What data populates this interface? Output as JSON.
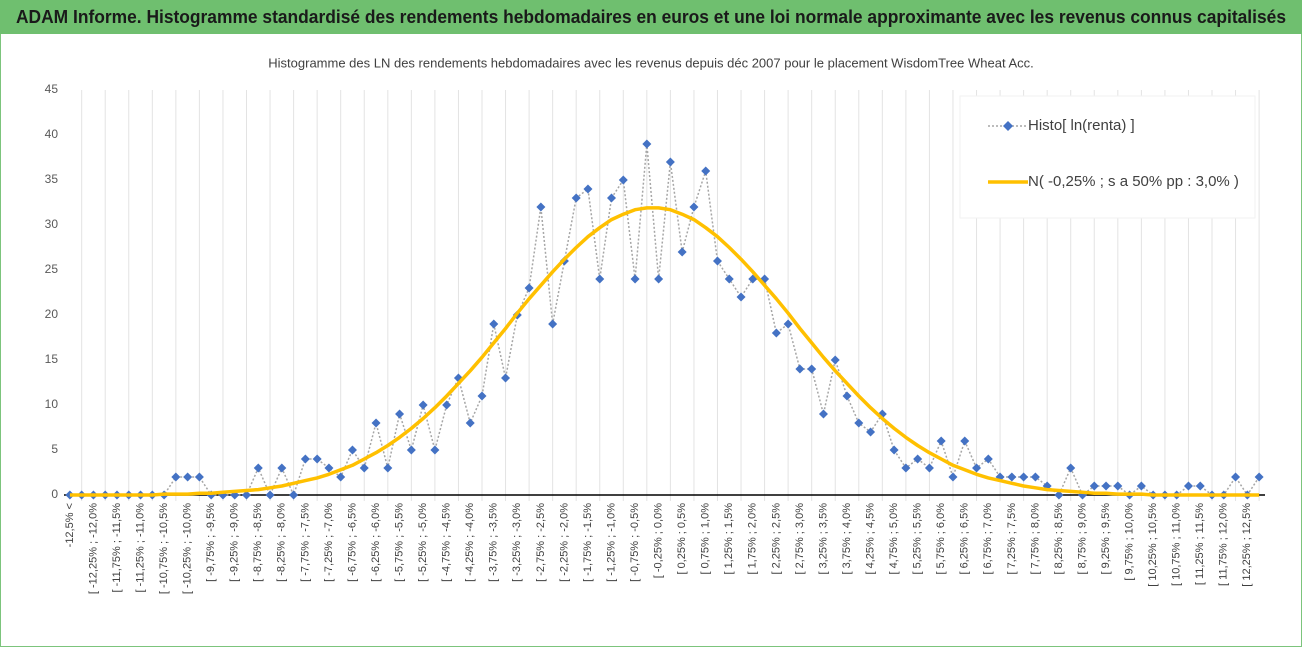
{
  "chart_data": {
    "type": "line",
    "title": "ADAM Informe. Histogramme standardisé des rendements hebdomadaires en euros et une loi normale approximante avec les revenus connus capitalisés",
    "subtitle": "Histogramme des LN des rendements hebdomadaires avec les revenus depuis déc 2007 pour le placement WisdomTree  Wheat Acc.",
    "categories": [
      "-12,5% <",
      null,
      "[ -12,25% ; -12,0%",
      null,
      "[ -11,75% ; -11,5%",
      null,
      "[ -11,25% ; -11,0%",
      null,
      "[ -10,75% ; -10,5%",
      null,
      "[ -10,25% ; -10,0%",
      null,
      "[ -9,75% ; -9,5%",
      null,
      "[ -9,25% ; -9,0%",
      null,
      "[ -8,75% ; -8,5%",
      null,
      "[ -8,25% ; -8,0%",
      null,
      "[ -7,75% ; -7,5%",
      null,
      "[ -7,25% ; -7,0%",
      null,
      "[ -6,75% ; -6,5%",
      null,
      "[ -6,25% ; -6,0%",
      null,
      "[ -5,75% ; -5,5%",
      null,
      "[ -5,25% ; -5,0%",
      null,
      "[ -4,75% ; -4,5%",
      null,
      "[ -4,25% ; -4,0%",
      null,
      "[ -3,75% ; -3,5%",
      null,
      "[ -3,25% ; -3,0%",
      null,
      "[ -2,75% ; -2,5%",
      null,
      "[ -2,25% ; -2,0%",
      null,
      "[ -1,75% ; -1,5%",
      null,
      "[ -1,25% ; -1,0%",
      null,
      "[ -0,75% ; -0,5%",
      null,
      "[ -0,25% ; 0,0%",
      null,
      "[ 0,25% ; 0,5%",
      null,
      "[ 0,75% ; 1,0%",
      null,
      "[ 1,25% ; 1,5%",
      null,
      "[ 1,75% ; 2,0%",
      null,
      "[ 2,25% ; 2,5%",
      null,
      "[ 2,75% ; 3,0%",
      null,
      "[ 3,25% ; 3,5%",
      null,
      "[ 3,75% ; 4,0%",
      null,
      "[ 4,25% ; 4,5%",
      null,
      "[ 4,75% ; 5,0%",
      null,
      "[ 5,25% ; 5,5%",
      null,
      "[ 5,75% ; 6,0%",
      null,
      "[ 6,25% ; 6,5%",
      null,
      "[ 6,75% ; 7,0%",
      null,
      "[ 7,25% ; 7,5%",
      null,
      "[ 7,75% ; 8,0%",
      null,
      "[ 8,25% ; 8,5%",
      null,
      "[ 8,75% ; 9,0%",
      null,
      "[ 9,25% ; 9,5%",
      null,
      "[ 9,75% ; 10,0%",
      null,
      "[ 10,25% ; 10,5%",
      null,
      "[ 10,75% ; 11,0%",
      null,
      "[ 11,25% ; 11,5%",
      null,
      "[ 11,75% ; 12,0%",
      null,
      "[ 12,25% ; 12,5%",
      null
    ],
    "series": [
      {
        "name": "Histo[ ln(renta) ]",
        "color": "#4472c4",
        "line_color": "#a6a6a6",
        "values": [
          0,
          0,
          0,
          0,
          0,
          0,
          0,
          0,
          0,
          2,
          2,
          2,
          0,
          0,
          0,
          0,
          3,
          0,
          3,
          0,
          4,
          4,
          3,
          2,
          5,
          3,
          8,
          3,
          9,
          5,
          10,
          5,
          10,
          13,
          8,
          11,
          19,
          13,
          20,
          23,
          32,
          19,
          26,
          33,
          34,
          24,
          33,
          35,
          24,
          39,
          24,
          37,
          27,
          32,
          36,
          26,
          24,
          22,
          24,
          24,
          18,
          19,
          14,
          14,
          9,
          15,
          11,
          8,
          7,
          9,
          5,
          3,
          4,
          3,
          6,
          2,
          6,
          3,
          4,
          2,
          2,
          2,
          2,
          1,
          0,
          3,
          0,
          1,
          1,
          1,
          0,
          1,
          0,
          0,
          0,
          1,
          1,
          0,
          0,
          2,
          0,
          2
        ]
      },
      {
        "name": "N( -0,25% ; s a 50% pp : 3,0% )",
        "color": "#ffc000",
        "values": [
          0,
          0,
          0,
          0,
          0,
          0,
          0,
          0,
          0.1,
          0.1,
          0.1,
          0.2,
          0.2,
          0.3,
          0.4,
          0.5,
          0.6,
          0.8,
          1.0,
          1.3,
          1.6,
          1.9,
          2.3,
          2.8,
          3.3,
          4.0,
          4.7,
          5.5,
          6.4,
          7.4,
          8.5,
          9.7,
          11.0,
          12.4,
          13.8,
          15.3,
          16.9,
          18.5,
          20.2,
          21.8,
          23.3,
          24.8,
          26.2,
          27.5,
          28.7,
          29.7,
          30.6,
          31.2,
          31.7,
          31.9,
          31.9,
          31.7,
          31.2,
          30.6,
          29.7,
          28.7,
          27.5,
          26.2,
          24.8,
          23.3,
          21.8,
          20.2,
          18.5,
          16.9,
          15.3,
          13.8,
          12.4,
          11.0,
          9.7,
          8.5,
          7.4,
          6.4,
          5.5,
          4.7,
          4.0,
          3.3,
          2.8,
          2.3,
          1.9,
          1.6,
          1.3,
          1.0,
          0.8,
          0.6,
          0.5,
          0.4,
          0.3,
          0.2,
          0.2,
          0.1,
          0.1,
          0.1,
          0,
          0,
          0,
          0,
          0,
          0,
          0,
          0,
          0,
          0
        ]
      }
    ],
    "ylim": [
      0,
      45
    ],
    "yticks": [
      0,
      5,
      10,
      15,
      20,
      25,
      30,
      35,
      40,
      45
    ],
    "grid": true,
    "legend": "top-right"
  }
}
